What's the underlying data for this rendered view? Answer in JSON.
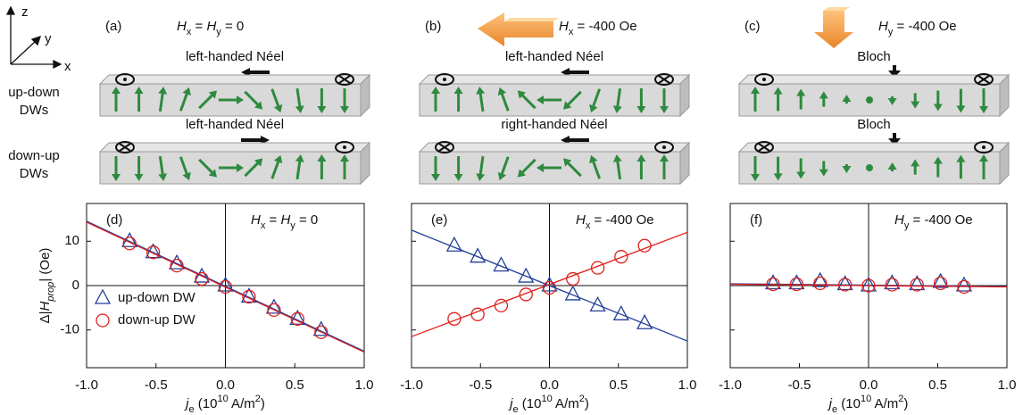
{
  "figure": {
    "axes_labels": {
      "z": "z",
      "y": "y",
      "x": "x"
    },
    "rows": [
      {
        "lines": [
          "up-down",
          "DWs"
        ]
      },
      {
        "lines": [
          "down-up",
          "DWs"
        ]
      }
    ],
    "panels": [
      {
        "label": "(a)",
        "field": [
          "H",
          "x",
          " = ",
          "H",
          "y",
          " = 0"
        ],
        "walls": [
          "left-handed Néel",
          "left-handed Néel"
        ]
      },
      {
        "label": "(b)",
        "field": [
          "H",
          "x",
          " = -400 Oe"
        ],
        "walls": [
          "left-handed Néel",
          "right-handed Néel"
        ]
      },
      {
        "label": "(c)",
        "field": [
          "H",
          "y",
          " = -400 Oe"
        ],
        "walls": [
          "Bloch",
          "Bloch"
        ]
      }
    ]
  },
  "chart_data": [
    {
      "type": "scatter",
      "panel_label": "(d)",
      "annotation": [
        "H",
        "x",
        " = ",
        "H",
        "y",
        " = 0"
      ],
      "xlabel": [
        "j",
        "e",
        " (10",
        "10",
        " A/m",
        "2",
        ")"
      ],
      "ylabel": [
        "Δ|",
        "H",
        "prop",
        "| (Oe)"
      ],
      "xlim": [
        -1.0,
        1.0
      ],
      "xticks": [
        {
          "value": -1.0,
          "label": "-1.0"
        },
        {
          "value": -0.5,
          "label": "-0.5"
        },
        {
          "value": 0,
          "label": "0.0"
        },
        {
          "value": 0.5,
          "label": "0.5"
        },
        {
          "value": 1.0,
          "label": "1.0"
        }
      ],
      "ylim": [
        -18.5,
        18.5
      ],
      "yticks": [
        -10,
        0,
        10
      ],
      "x": [
        -0.69,
        -0.52,
        -0.35,
        -0.17,
        0,
        0.17,
        0.35,
        0.52,
        0.69
      ],
      "series": [
        {
          "name": "up-down DW",
          "color": "#22409a",
          "marker": "triangle",
          "values": [
            10,
            7.5,
            5,
            2,
            0,
            -2.5,
            -5,
            -7.5,
            -10
          ]
        },
        {
          "name": "down-up DW",
          "color": "#e0201b",
          "marker": "circle",
          "values": [
            9.5,
            7.5,
            4.5,
            1.5,
            -0.3,
            -2.5,
            -5.5,
            -7.5,
            -10.5
          ]
        }
      ],
      "fits": [
        {
          "color": "#22409a",
          "x": [
            -1.0,
            1.0
          ],
          "values": [
            14.5,
            -14.8
          ]
        },
        {
          "color": "#e0201b",
          "x": [
            -1.0,
            1.0
          ],
          "values": [
            14.3,
            -15
          ]
        }
      ],
      "legend": "lower left"
    },
    {
      "type": "scatter",
      "panel_label": "(e)",
      "annotation": [
        "H",
        "x",
        " = -400 Oe"
      ],
      "xlabel": [
        "j",
        "e",
        " (10",
        "10",
        " A/m",
        "2",
        ")"
      ],
      "xlim": [
        -1.0,
        1.0
      ],
      "xticks": [
        {
          "value": -1.0,
          "label": "-1.0"
        },
        {
          "value": -0.5,
          "label": "-0.5"
        },
        {
          "value": 0,
          "label": "0.0"
        },
        {
          "value": 0.5,
          "label": "0.5"
        },
        {
          "value": 1.0,
          "label": "1.0"
        }
      ],
      "ylim": [
        -18.5,
        18.5
      ],
      "yticks": [
        -10,
        0,
        10
      ],
      "ytick_labels": false,
      "x": [
        -0.69,
        -0.52,
        -0.35,
        -0.17,
        0,
        0.17,
        0.35,
        0.52,
        0.69
      ],
      "series": [
        {
          "color": "#22409a",
          "marker": "triangle",
          "values": [
            9,
            6.5,
            4.5,
            2,
            0,
            -2,
            -4.5,
            -6.5,
            -8.5
          ]
        },
        {
          "color": "#e0201b",
          "marker": "circle",
          "values": [
            -7.5,
            -6.5,
            -4.5,
            -2,
            -0.5,
            1.5,
            4,
            6.5,
            9
          ]
        }
      ],
      "fits": [
        {
          "color": "#22409a",
          "x": [
            -1.0,
            1.0
          ],
          "values": [
            12.5,
            -12.5
          ]
        },
        {
          "color": "#e0201b",
          "x": [
            -1.0,
            1.0
          ],
          "values": [
            -11.5,
            12
          ]
        }
      ]
    },
    {
      "type": "scatter",
      "panel_label": "(f)",
      "annotation": [
        "H",
        "y",
        " = -400 Oe"
      ],
      "xlabel": [
        "j",
        "e",
        " (10",
        "10",
        " A/m",
        "2",
        ")"
      ],
      "xlim": [
        -1.0,
        1.0
      ],
      "xticks": [
        {
          "value": -1.0,
          "label": "-1.0"
        },
        {
          "value": -0.5,
          "label": "-0.5"
        },
        {
          "value": 0,
          "label": "0.0"
        },
        {
          "value": 0.5,
          "label": "0.5"
        },
        {
          "value": 1.0,
          "label": "1.0"
        }
      ],
      "ylim": [
        -18.5,
        18.5
      ],
      "yticks": [
        -10,
        0,
        10
      ],
      "ytick_labels": false,
      "x": [
        -0.69,
        -0.52,
        -0.35,
        -0.17,
        0,
        0.17,
        0.35,
        0.52,
        0.69
      ],
      "series": [
        {
          "color": "#22409a",
          "marker": "triangle",
          "values": [
            0.5,
            0.5,
            1,
            0.3,
            0,
            0.5,
            0.3,
            0.8,
            0
          ]
        },
        {
          "color": "#e0201b",
          "marker": "circle",
          "values": [
            0.3,
            0.3,
            0.5,
            0.2,
            0,
            0.2,
            0.2,
            0.5,
            -0.3
          ]
        }
      ],
      "fits": [
        {
          "color": "#22409a",
          "x": [
            -1.0,
            1.0
          ],
          "values": [
            0.4,
            -0.2
          ]
        },
        {
          "color": "#e0201b",
          "x": [
            -1.0,
            1.0
          ],
          "values": [
            0.3,
            -0.3
          ]
        }
      ]
    }
  ]
}
